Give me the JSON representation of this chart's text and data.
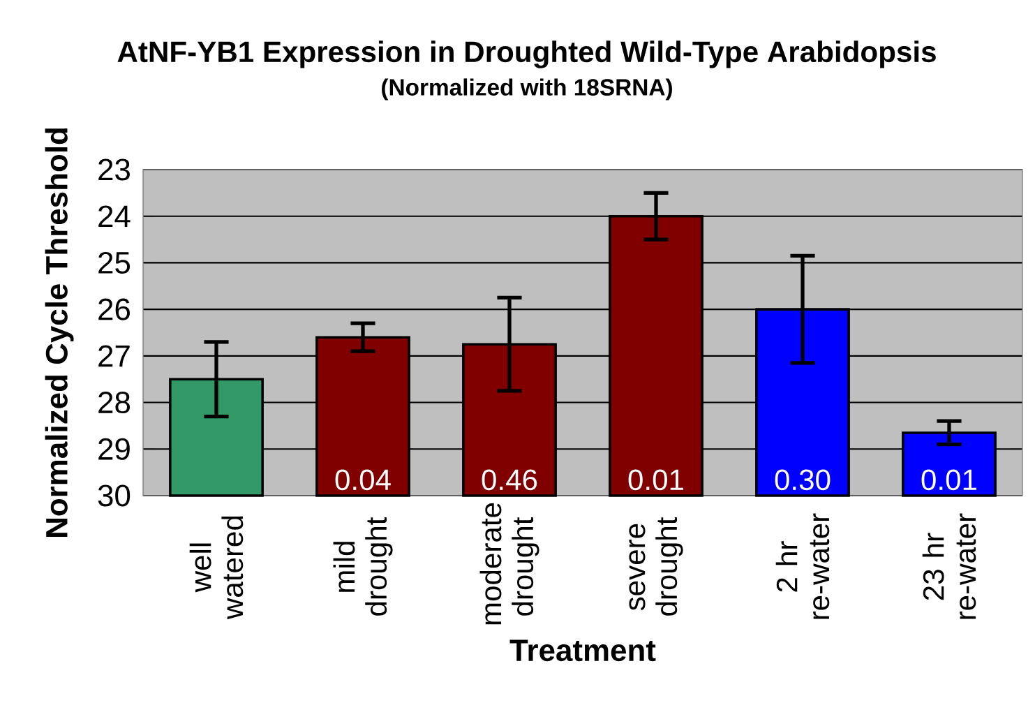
{
  "chart_data": {
    "type": "bar",
    "title": "AtNF-YB1 Expression in Droughted Wild-Type Arabidopsis",
    "subtitle": "(Normalized with 18SRNA)",
    "xlabel": "Treatment",
    "ylabel": "Normalized Cycle Threshold",
    "categories": [
      "well watered",
      "mild drought",
      "moderate drought",
      "severe drought",
      "2 hr re-water",
      "23 hr re-water"
    ],
    "base": [
      30,
      30,
      30,
      30,
      30,
      30
    ],
    "values": [
      -2.5,
      -3.4,
      -3.25,
      -6.0,
      -4.0,
      -1.35
    ],
    "errors": [
      0.8,
      0.3,
      1.0,
      0.5,
      1.15,
      0.25
    ],
    "colors": [
      "#339966",
      "#800000",
      "#800000",
      "#800000",
      "#0000ff",
      "#0000ff"
    ],
    "ylim": [
      30,
      23
    ],
    "yticks": [
      23,
      24,
      25,
      26,
      27,
      28,
      29,
      30
    ],
    "grid": "y",
    "annotations": [
      "0.04",
      "0.46",
      "0.01",
      "0.30",
      "0.01"
    ]
  }
}
